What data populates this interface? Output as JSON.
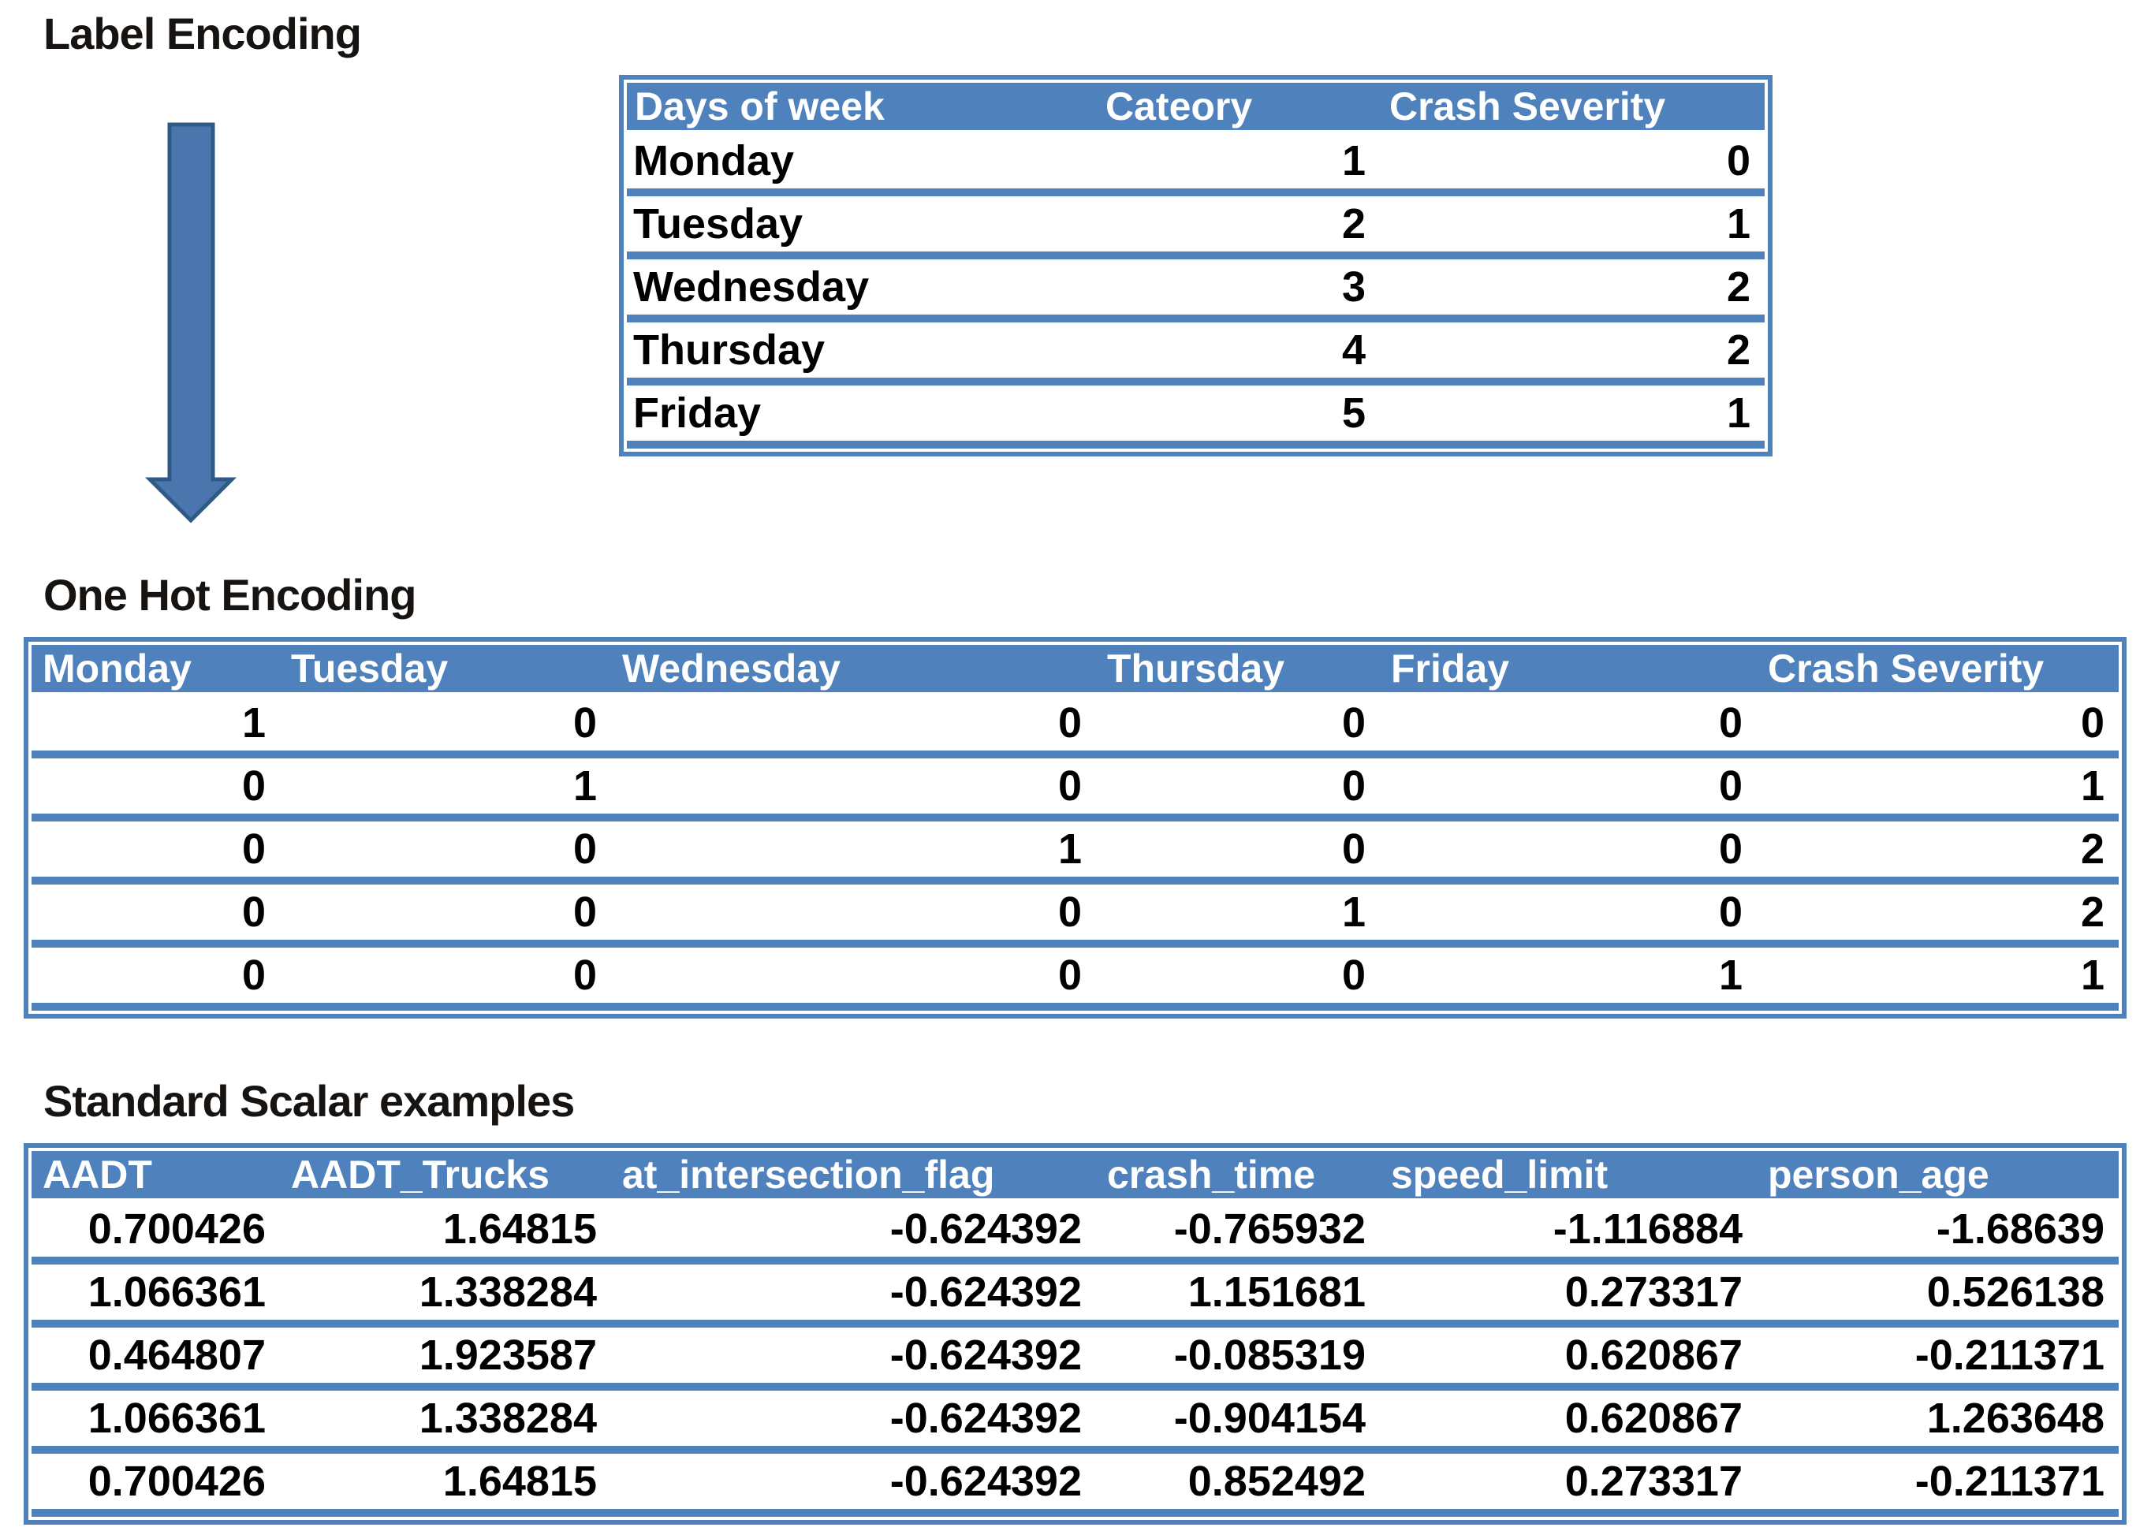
{
  "colors": {
    "table_blue": "#4f81bd",
    "header_text": "#ffffff",
    "cell_text": "#000000",
    "arrow_fill": "#4a76ad",
    "arrow_stroke": "#305a86"
  },
  "arrow": {
    "meaning": "transforms-to"
  },
  "sections": {
    "label_encoding": {
      "title": "Label Encoding",
      "table": {
        "columns": [
          "Days of week",
          "Cateory",
          "Crash Severity"
        ],
        "rows": [
          [
            "Monday",
            "1",
            "0"
          ],
          [
            "Tuesday",
            "2",
            "1"
          ],
          [
            "Wednesday",
            "3",
            "2"
          ],
          [
            "Thursday",
            "4",
            "2"
          ],
          [
            "Friday",
            "5",
            "1"
          ]
        ]
      }
    },
    "one_hot_encoding": {
      "title": "One Hot Encoding",
      "table": {
        "columns": [
          "Monday",
          "Tuesday",
          "Wednesday",
          "Thursday",
          "Friday",
          "Crash Severity"
        ],
        "rows": [
          [
            "1",
            "0",
            "0",
            "0",
            "0",
            "0"
          ],
          [
            "0",
            "1",
            "0",
            "0",
            "0",
            "1"
          ],
          [
            "0",
            "0",
            "1",
            "0",
            "0",
            "2"
          ],
          [
            "0",
            "0",
            "0",
            "1",
            "0",
            "2"
          ],
          [
            "0",
            "0",
            "0",
            "0",
            "1",
            "1"
          ]
        ]
      }
    },
    "standard_scalar": {
      "title": "Standard Scalar examples",
      "table": {
        "columns": [
          "AADT",
          "AADT_Trucks",
          "at_intersection_flag",
          "crash_time",
          "speed_limit",
          "person_age"
        ],
        "rows": [
          [
            "0.700426",
            "1.64815",
            "-0.624392",
            "-0.765932",
            "-1.116884",
            "-1.68639"
          ],
          [
            "1.066361",
            "1.338284",
            "-0.624392",
            "1.151681",
            "0.273317",
            "0.526138"
          ],
          [
            "0.464807",
            "1.923587",
            "-0.624392",
            "-0.085319",
            "0.620867",
            "-0.211371"
          ],
          [
            "1.066361",
            "1.338284",
            "-0.624392",
            "-0.904154",
            "0.620867",
            "1.263648"
          ],
          [
            "0.700426",
            "1.64815",
            "-0.624392",
            "0.852492",
            "0.273317",
            "-0.211371"
          ]
        ]
      }
    }
  }
}
